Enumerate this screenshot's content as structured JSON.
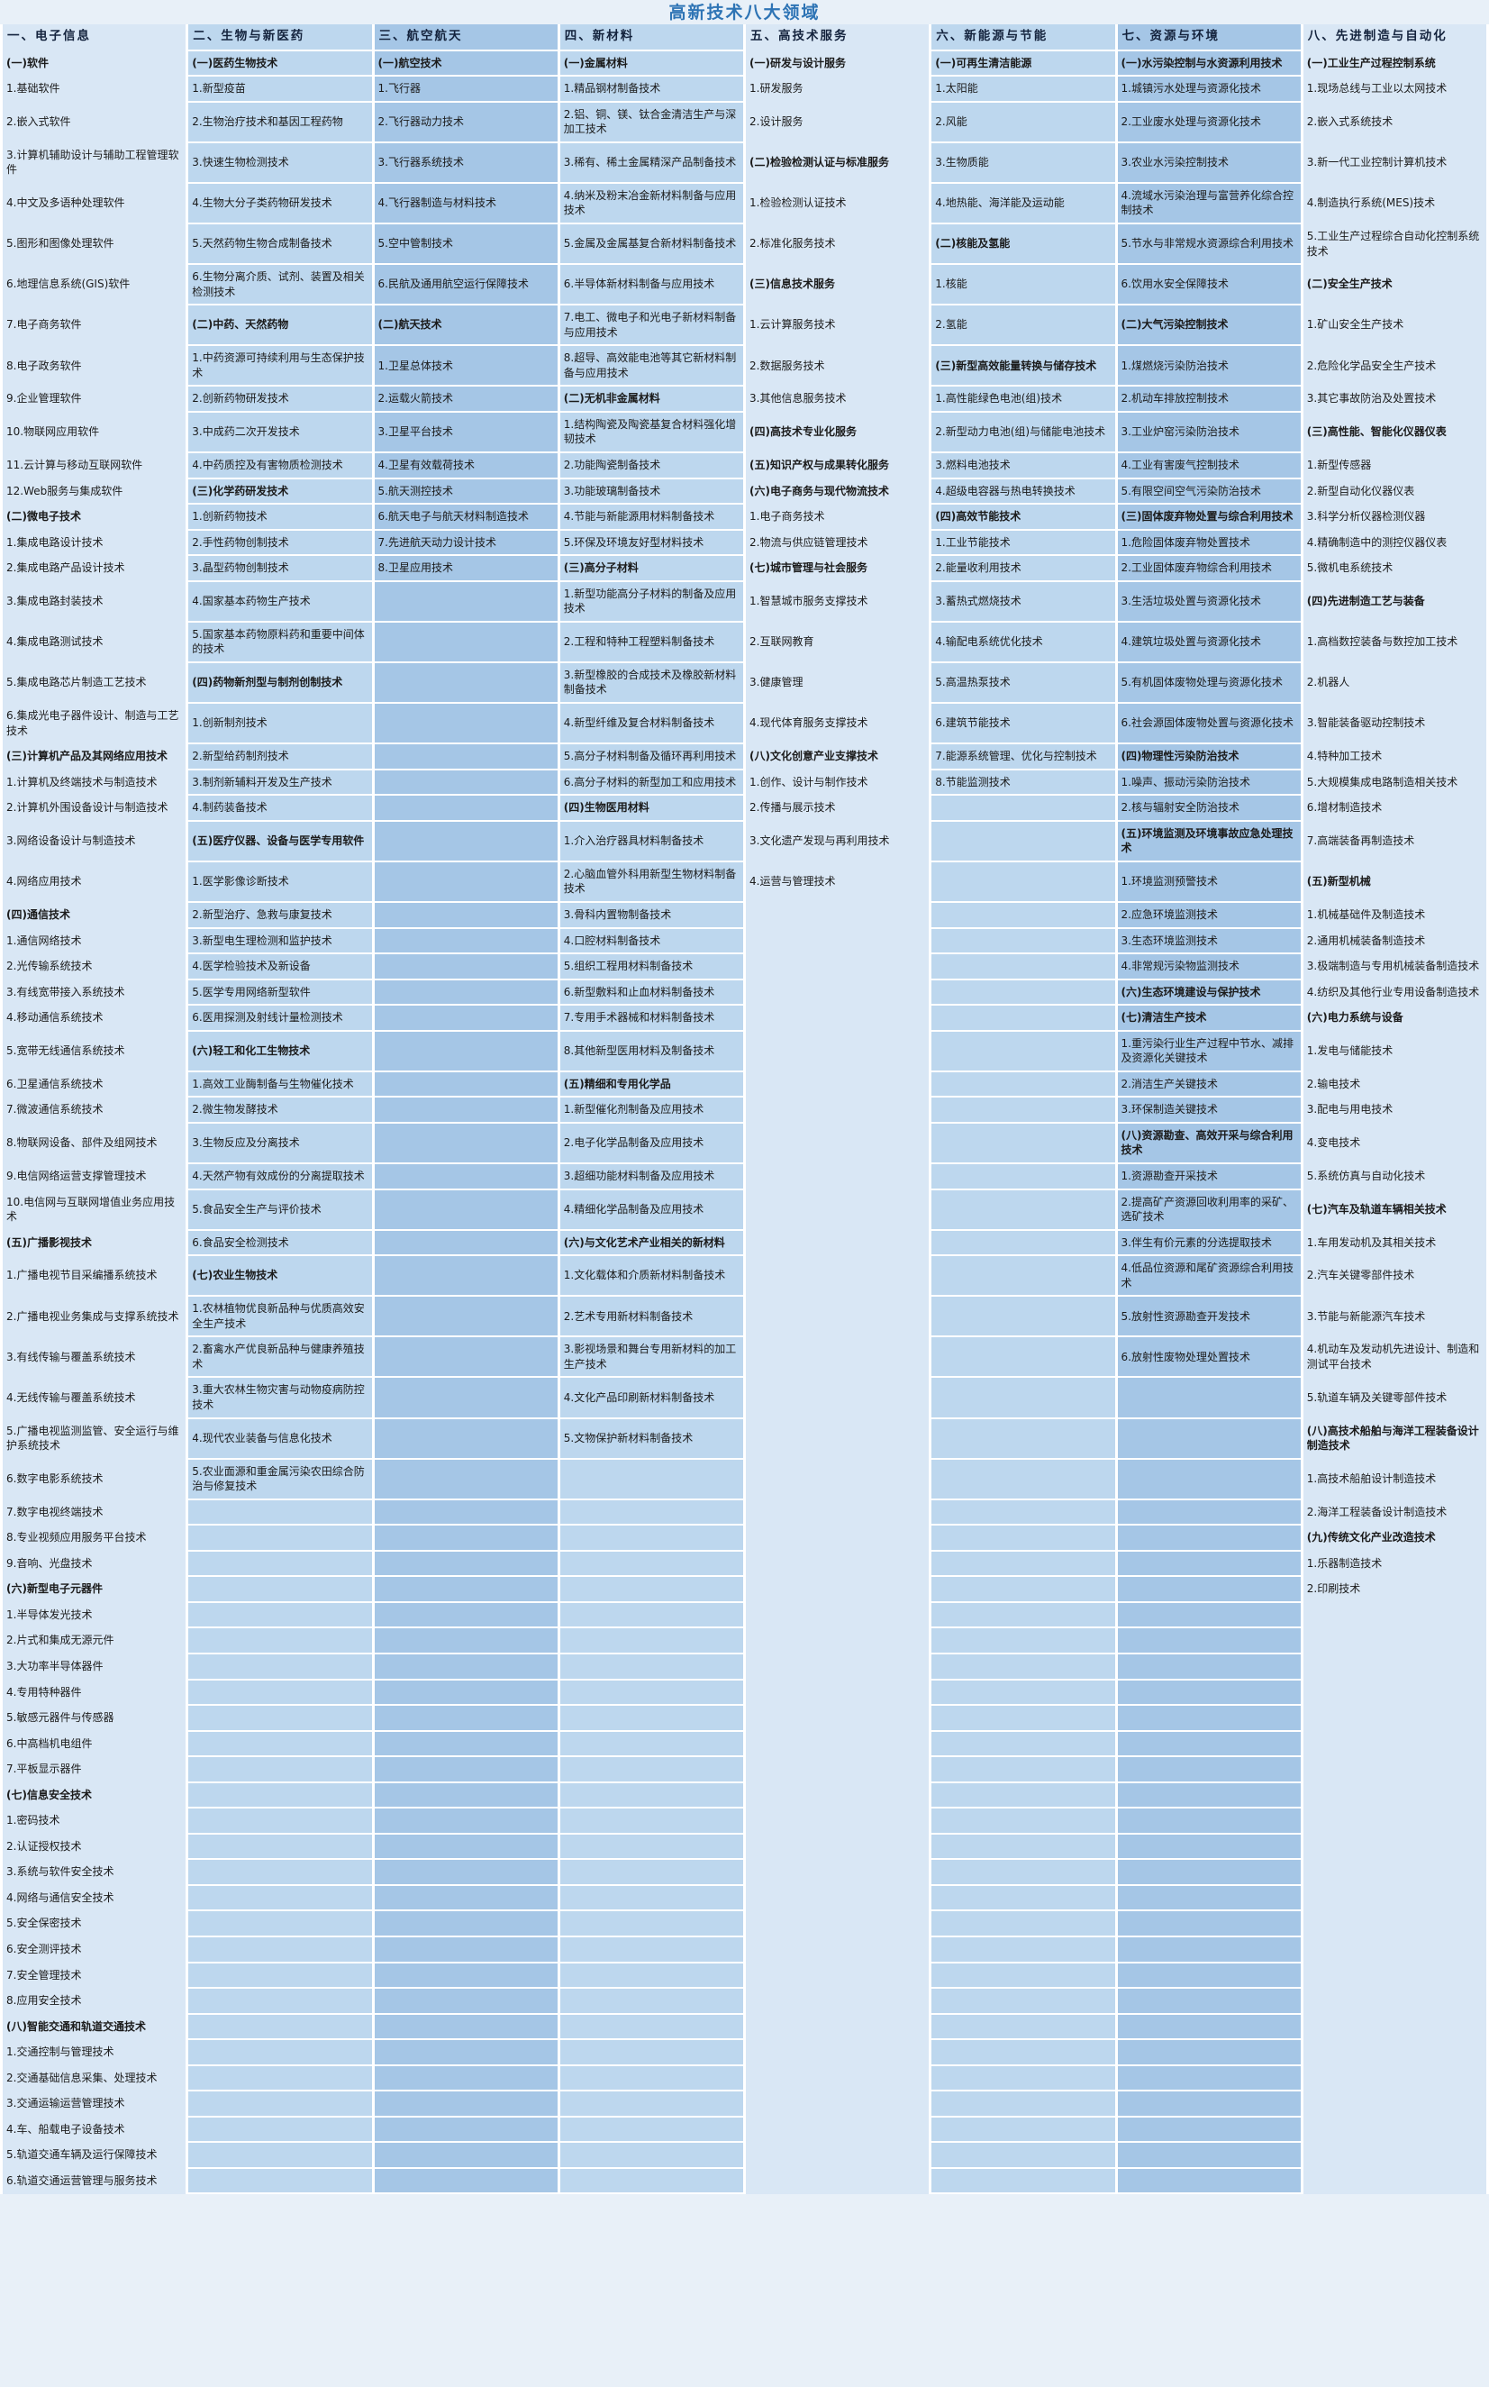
{
  "title": "高新技术八大领域",
  "colors": {
    "light": "#d9e7f5",
    "medium": "#bdd7ee",
    "dark": "#a5c6e6",
    "title": "#2e74b5",
    "text": "#1b1b1b",
    "grid": "#ffffff",
    "page": "#e8f0f8"
  },
  "columns": [
    {
      "header": "一、电子信息",
      "shade": "light",
      "cells": [
        "(一)软件",
        "1.基础软件",
        "2.嵌入式软件",
        "3.计算机辅助设计与辅助工程管理软件",
        "4.中文及多语种处理软件",
        "5.图形和图像处理软件",
        "6.地理信息系统(GIS)软件",
        "7.电子商务软件",
        "8.电子政务软件",
        "9.企业管理软件",
        "10.物联网应用软件",
        "11.云计算与移动互联网软件",
        "12.Web服务与集成软件",
        "(二)微电子技术",
        "1.集成电路设计技术",
        "2.集成电路产品设计技术",
        "3.集成电路封装技术",
        "4.集成电路测试技术",
        "5.集成电路芯片制造工艺技术",
        "6.集成光电子器件设计、制造与工艺技术",
        "(三)计算机产品及其网络应用技术",
        "1.计算机及终端技术与制造技术",
        "2.计算机外围设备设计与制造技术",
        "3.网络设备设计与制造技术",
        "4.网络应用技术",
        "(四)通信技术",
        "1.通信网络技术",
        "2.光传输系统技术",
        "3.有线宽带接入系统技术",
        "4.移动通信系统技术",
        "5.宽带无线通信系统技术",
        "6.卫星通信系统技术",
        "7.微波通信系统技术",
        "8.物联网设备、部件及组网技术",
        "9.电信网络运营支撑管理技术",
        "10.电信网与互联网增值业务应用技术",
        "(五)广播影视技术",
        "1.广播电视节目采编播系统技术",
        "2.广播电视业务集成与支撑系统技术",
        "3.有线传输与覆盖系统技术",
        "4.无线传输与覆盖系统技术",
        "5.广播电视监测监管、安全运行与维护系统技术",
        "6.数字电影系统技术",
        "7.数字电视终端技术",
        "8.专业视频应用服务平台技术",
        "9.音响、光盘技术",
        "(六)新型电子元器件",
        "1.半导体发光技术",
        "2.片式和集成无源元件",
        "3.大功率半导体器件",
        "4.专用特种器件",
        "5.敏感元器件与传感器",
        "6.中高档机电组件",
        "7.平板显示器件",
        "(七)信息安全技术",
        "1.密码技术",
        "2.认证授权技术",
        "3.系统与软件安全技术",
        "4.网络与通信安全技术",
        "5.安全保密技术",
        "6.安全测评技术",
        "7.安全管理技术",
        "8.应用安全技术",
        "(八)智能交通和轨道交通技术",
        "1.交通控制与管理技术",
        "2.交通基础信息采集、处理技术",
        "3.交通运输运营管理技术",
        "4.车、船载电子设备技术",
        "5.轨道交通车辆及运行保障技术",
        "6.轨道交通运营管理与服务技术"
      ]
    },
    {
      "header": "二、生物与新医药",
      "shade": "medium",
      "cells": [
        "(一)医药生物技术",
        "1.新型疫苗",
        "2.生物治疗技术和基因工程药物",
        "3.快速生物检测技术",
        "4.生物大分子类药物研发技术",
        "5.天然药物生物合成制备技术",
        "6.生物分离介质、试剂、装置及相关检测技术",
        "(二)中药、天然药物",
        "1.中药资源可持续利用与生态保护技术",
        "2.创新药物研发技术",
        "3.中成药二次开发技术",
        "4.中药质控及有害物质检测技术",
        "(三)化学药研发技术",
        "1.创新药物技术",
        "2.手性药物创制技术",
        "3.晶型药物创制技术",
        "4.国家基本药物生产技术",
        "5.国家基本药物原料药和重要中间体的技术",
        "(四)药物新剂型与制剂创制技术",
        "1.创新制剂技术",
        "2.新型给药制剂技术",
        "3.制剂新辅料开发及生产技术",
        "4.制药装备技术",
        "(五)医疗仪器、设备与医学专用软件",
        "1.医学影像诊断技术",
        "2.新型治疗、急救与康复技术",
        "3.新型电生理检测和监护技术",
        "4.医学检验技术及新设备",
        "5.医学专用网络新型软件",
        "6.医用探测及射线计量检测技术",
        "(六)轻工和化工生物技术",
        "1.高效工业酶制备与生物催化技术",
        "2.微生物发酵技术",
        "3.生物反应及分离技术",
        "4.天然产物有效成份的分离提取技术",
        "5.食品安全生产与评价技术",
        "6.食品安全检测技术",
        "(七)农业生物技术",
        "1.农林植物优良新品种与优质高效安全生产技术",
        "2.畜禽水产优良新品种与健康养殖技术",
        "3.重大农林生物灾害与动物疫病防控技术",
        "4.现代农业装备与信息化技术",
        "5.农业面源和重金属污染农田综合防治与修复技术"
      ]
    },
    {
      "header": "三、航空航天",
      "shade": "dark",
      "cells": [
        "(一)航空技术",
        "1.飞行器",
        "2.飞行器动力技术",
        "3.飞行器系统技术",
        "4.飞行器制造与材料技术",
        "5.空中管制技术",
        "6.民航及通用航空运行保障技术",
        "(二)航天技术",
        "1.卫星总体技术",
        "2.运载火箭技术",
        "3.卫星平台技术",
        "4.卫星有效载荷技术",
        "5.航天测控技术",
        "6.航天电子与航天材料制造技术",
        "7.先进航天动力设计技术",
        "8.卫星应用技术"
      ]
    },
    {
      "header": "四、新材料",
      "shade": "medium",
      "cells": [
        "(一)金属材料",
        "1.精品钢材制备技术",
        "2.铝、铜、镁、钛合金清洁生产与深加工技术",
        "3.稀有、稀土金属精深产品制备技术",
        "4.纳米及粉末冶金新材料制备与应用技术",
        "5.金属及金属基复合新材料制备技术",
        "6.半导体新材料制备与应用技术",
        "7.电工、微电子和光电子新材料制备与应用技术",
        "8.超导、高效能电池等其它新材料制备与应用技术",
        "(二)无机非金属材料",
        "1.结构陶瓷及陶瓷基复合材料强化增韧技术",
        "2.功能陶瓷制备技术",
        "3.功能玻璃制备技术",
        "4.节能与新能源用材料制备技术",
        "5.环保及环境友好型材料技术",
        "(三)高分子材料",
        "1.新型功能高分子材料的制备及应用技术",
        "2.工程和特种工程塑料制备技术",
        "3.新型橡胶的合成技术及橡胶新材料制备技术",
        "4.新型纤维及复合材料制备技术",
        "5.高分子材料制备及循环再利用技术",
        "6.高分子材料的新型加工和应用技术",
        "(四)生物医用材料",
        "1.介入治疗器具材料制备技术",
        "2.心脑血管外科用新型生物材料制备技术",
        "3.骨科内置物制备技术",
        "4.口腔材料制备技术",
        "5.组织工程用材料制备技术",
        "6.新型敷料和止血材料制备技术",
        "7.专用手术器械和材料制备技术",
        "8.其他新型医用材料及制备技术",
        "(五)精细和专用化学品",
        "1.新型催化剂制备及应用技术",
        "2.电子化学品制备及应用技术",
        "3.超细功能材料制备及应用技术",
        "4.精细化学品制备及应用技术",
        "(六)与文化艺术产业相关的新材料",
        "1.文化载体和介质新材料制备技术",
        "2.艺术专用新材料制备技术",
        "3.影视场景和舞台专用新材料的加工生产技术",
        "4.文化产品印刷新材料制备技术",
        "5.文物保护新材料制备技术"
      ]
    },
    {
      "header": "五、高技术服务",
      "shade": "light",
      "cells": [
        "(一)研发与设计服务",
        "1.研发服务",
        "2.设计服务",
        "(二)检验检测认证与标准服务",
        "1.检验检测认证技术",
        "2.标准化服务技术",
        "(三)信息技术服务",
        "1.云计算服务技术",
        "2.数据服务技术",
        "3.其他信息服务技术",
        "(四)高技术专业化服务",
        "(五)知识产权与成果转化服务",
        "(六)电子商务与现代物流技术",
        "1.电子商务技术",
        "2.物流与供应链管理技术",
        "(七)城市管理与社会服务",
        "1.智慧城市服务支撑技术",
        "2.互联网教育",
        "3.健康管理",
        "4.现代体育服务支撑技术",
        "(八)文化创意产业支撑技术",
        "1.创作、设计与制作技术",
        "2.传播与展示技术",
        "3.文化遗产发现与再利用技术",
        "4.运营与管理技术"
      ]
    },
    {
      "header": "六、新能源与节能",
      "shade": "medium",
      "cells": [
        "(一)可再生清洁能源",
        "1.太阳能",
        "2.风能",
        "3.生物质能",
        "4.地热能、海洋能及运动能",
        "(二)核能及氢能",
        "1.核能",
        "2.氢能",
        "(三)新型高效能量转换与储存技术",
        "1.高性能绿色电池(组)技术",
        "2.新型动力电池(组)与储能电池技术",
        "3.燃料电池技术",
        "4.超级电容器与热电转换技术",
        "(四)高效节能技术",
        "1.工业节能技术",
        "2.能量收利用技术",
        "3.蓄热式燃烧技术",
        "4.输配电系统优化技术",
        "5.高温热泵技术",
        "6.建筑节能技术",
        "7.能源系统管理、优化与控制技术",
        "8.节能监测技术"
      ]
    },
    {
      "header": "七、资源与环境",
      "shade": "dark",
      "cells": [
        "(一)水污染控制与水资源利用技术",
        "1.城镇污水处理与资源化技术",
        "2.工业废水处理与资源化技术",
        "3.农业水污染控制技术",
        "4.流域水污染治理与富营养化综合控制技术",
        "5.节水与非常规水资源综合利用技术",
        "6.饮用水安全保障技术",
        "(二)大气污染控制技术",
        "1.煤燃烧污染防治技术",
        "2.机动车排放控制技术",
        "3.工业炉窑污染防治技术",
        "4.工业有害废气控制技术",
        "5.有限空间空气污染防治技术",
        "(三)固体废弃物处置与综合利用技术",
        "1.危险固体废弃物处置技术",
        "2.工业固体废弃物综合利用技术",
        "3.生活垃圾处置与资源化技术",
        "4.建筑垃圾处置与资源化技术",
        "5.有机固体废物处理与资源化技术",
        "6.社会源固体废物处置与资源化技术",
        "(四)物理性污染防治技术",
        "1.噪声、振动污染防治技术",
        "2.核与辐射安全防治技术",
        "(五)环境监测及环境事故应急处理技术",
        "1.环境监测预警技术",
        "2.应急环境监测技术",
        "3.生态环境监测技术",
        "4.非常规污染物监测技术",
        "(六)生态环境建设与保护技术",
        "(七)清洁生产技术",
        "1.重污染行业生产过程中节水、减排及资源化关键技术",
        "2.消洁生产关键技术",
        "3.环保制造关键技术",
        "(八)资源勘查、高效开采与综合利用技术",
        "1.资源勘查开采技术",
        "2.提高矿产资源回收利用率的采矿、选矿技术",
        "3.伴生有价元素的分选提取技术",
        "4.低品位资源和尾矿资源综合利用技术",
        "5.放射性资源勘查开发技术",
        "6.放射性废物处理处置技术"
      ]
    },
    {
      "header": "八、先进制造与自动化",
      "shade": "light",
      "cells": [
        "(一)工业生产过程控制系统",
        "1.现场总线与工业以太网技术",
        "2.嵌入式系统技术",
        "3.新一代工业控制计算机技术",
        "4.制造执行系统(MES)技术",
        "5.工业生产过程综合自动化控制系统技术",
        "(二)安全生产技术",
        "1.矿山安全生产技术",
        "2.危险化学品安全生产技术",
        "3.其它事故防治及处置技术",
        "(三)高性能、智能化仪器仪表",
        "1.新型传感器",
        "2.新型自动化仪器仪表",
        "3.科学分析仪器检测仪器",
        "4.精确制造中的测控仪器仪表",
        "5.微机电系统技术",
        "(四)先进制造工艺与装备",
        "1.高档数控装备与数控加工技术",
        "2.机器人",
        "3.智能装备驱动控制技术",
        "4.特种加工技术",
        "5.大规模集成电路制造相关技术",
        "6.增材制造技术",
        "7.高端装备再制造技术",
        "(五)新型机械",
        "1.机械基础件及制造技术",
        "2.通用机械装备制造技术",
        "3.极端制造与专用机械装备制造技术",
        "4.纺织及其他行业专用设备制造技术",
        "(六)电力系统与设备",
        "1.发电与储能技术",
        "2.输电技术",
        "3.配电与用电技术",
        "4.变电技术",
        "5.系统仿真与自动化技术",
        "(七)汽车及轨道车辆相关技术",
        "1.车用发动机及其相关技术",
        "2.汽车关键零部件技术",
        "3.节能与新能源汽车技术",
        "4.机动车及发动机先进设计、制造和测试平台技术",
        "5.轨道车辆及关键零部件技术",
        "(八)高技术船舶与海洋工程装备设计制造技术",
        "1.高技术船舶设计制造技术",
        "2.海洋工程装备设计制造技术",
        "(九)传统文化产业改造技术",
        "1.乐器制造技术",
        "2.印刷技术"
      ]
    }
  ]
}
